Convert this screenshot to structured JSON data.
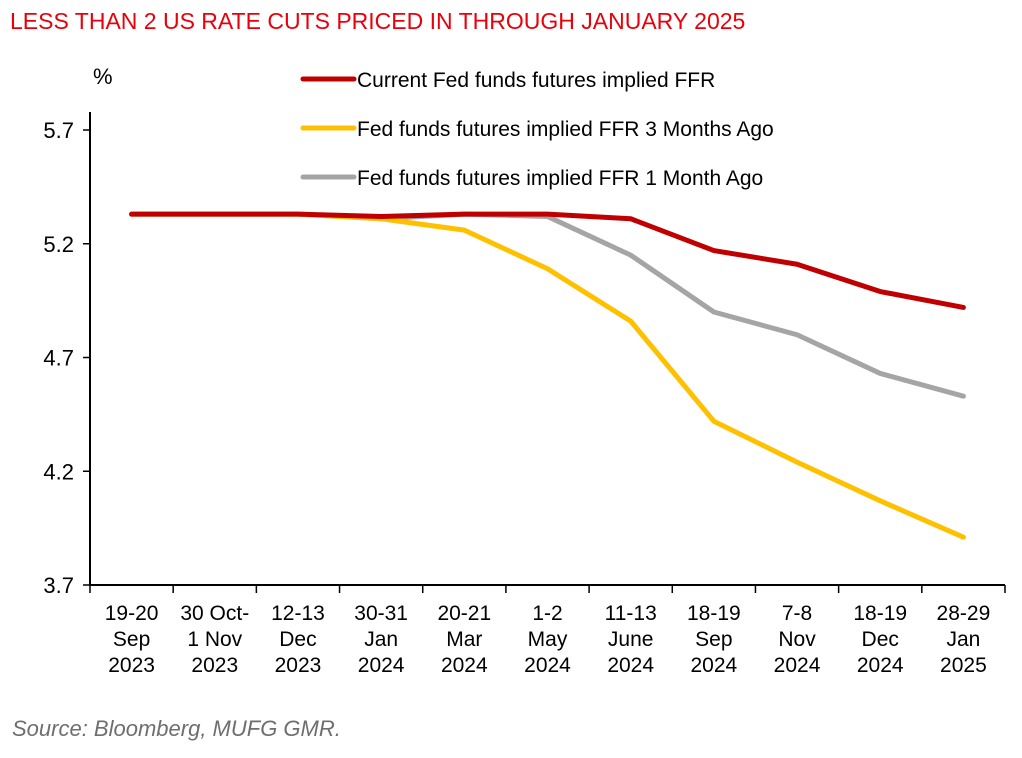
{
  "chart_data": {
    "type": "line",
    "title": "LESS THAN 2 US RATE CUTS PRICED IN THROUGH JANUARY 2025",
    "ylabel": "%",
    "xlabel": "",
    "ylim": [
      3.7,
      5.7
    ],
    "yticks": [
      3.7,
      4.2,
      4.7,
      5.2,
      5.7
    ],
    "ytick_labels": [
      "3.7",
      "4.2",
      "4.7",
      "5.2",
      "5.7"
    ],
    "grid": false,
    "legend_position": "top",
    "categories": [
      [
        "19-20",
        "Sep",
        "2023"
      ],
      [
        "30 Oct-",
        "1 Nov",
        "2023"
      ],
      [
        "12-13",
        "Dec",
        "2023"
      ],
      [
        "30-31",
        "Jan",
        "2024"
      ],
      [
        "20-21",
        "Mar",
        "2024"
      ],
      [
        "1-2",
        "May",
        "2024"
      ],
      [
        "11-13",
        "June",
        "2024"
      ],
      [
        "18-19",
        "Sep",
        "2024"
      ],
      [
        "7-8",
        "Nov",
        "2024"
      ],
      [
        "18-19",
        "Dec",
        "2024"
      ],
      [
        "28-29",
        "Jan",
        "2025"
      ]
    ],
    "series": [
      {
        "name": "Current Fed funds futures implied FFR",
        "color": "#c00000",
        "values": [
          5.33,
          5.33,
          5.33,
          5.32,
          5.33,
          5.33,
          5.31,
          5.17,
          5.11,
          4.99,
          4.92
        ]
      },
      {
        "name": "Fed funds futures implied FFR 3 Months Ago",
        "color": "#ffc000",
        "values": [
          5.33,
          5.33,
          5.33,
          5.31,
          5.26,
          5.09,
          4.86,
          4.42,
          4.24,
          4.07,
          3.91
        ]
      },
      {
        "name": "Fed funds futures implied FFR 1 Month Ago",
        "color": "#a5a5a5",
        "values": [
          5.33,
          5.33,
          5.33,
          5.31,
          5.33,
          5.32,
          5.15,
          4.9,
          4.8,
          4.63,
          4.53
        ]
      }
    ],
    "source": "Source: Bloomberg, MUFG GMR."
  }
}
